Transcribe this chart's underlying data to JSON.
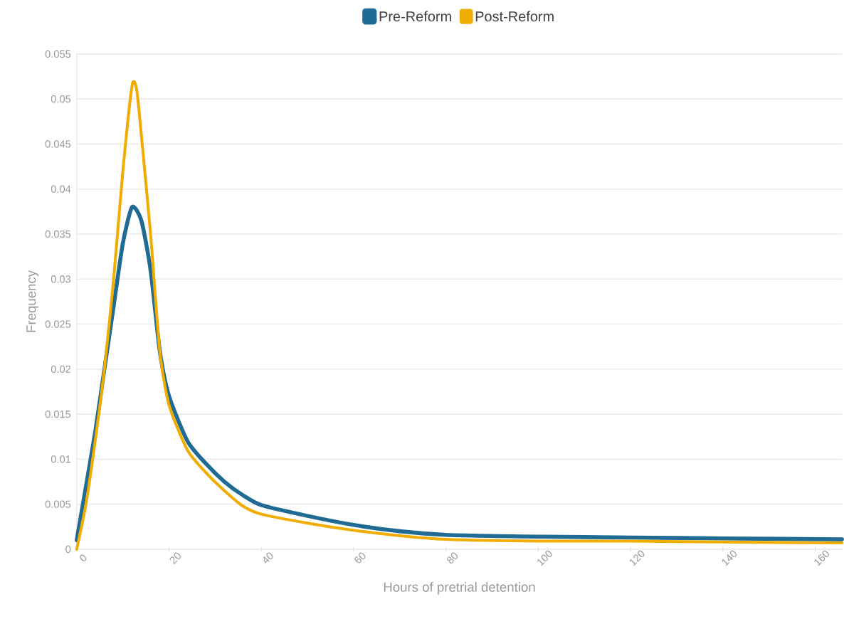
{
  "chart_data": {
    "type": "line",
    "xlabel": "Hours of pretrial detention",
    "ylabel": "Frequency",
    "xlim": [
      0,
      165.8
    ],
    "xticks": [
      0,
      20,
      40,
      60,
      80,
      100,
      120,
      140,
      160
    ],
    "ylim": [
      0,
      0.055
    ],
    "yticks": [
      0,
      0.005,
      0.01,
      0.015,
      0.02,
      0.025,
      0.03,
      0.035,
      0.04,
      0.045,
      0.05,
      0.055
    ],
    "grid": "y",
    "legend": "top",
    "marker": "none",
    "line_style": "solid",
    "series": [
      {
        "name": "Pre-Reform",
        "color": "#1f6b94",
        "x": [
          0,
          2,
          4,
          6,
          8,
          10,
          12,
          14,
          16,
          18,
          20,
          24,
          28,
          32,
          36,
          40,
          50,
          60,
          70,
          80,
          100,
          120,
          140,
          165.8
        ],
        "values": [
          0.001,
          0.007,
          0.013,
          0.02,
          0.027,
          0.034,
          0.038,
          0.0365,
          0.031,
          0.022,
          0.017,
          0.012,
          0.0095,
          0.0075,
          0.006,
          0.0049,
          0.0037,
          0.0027,
          0.002,
          0.0016,
          0.0014,
          0.0013,
          0.0012,
          0.0011
        ]
      },
      {
        "name": "Post-Reform",
        "color": "#f0ad00",
        "x": [
          0,
          2,
          4,
          6,
          8,
          10,
          12,
          13,
          14,
          16,
          18,
          20,
          24,
          28,
          32,
          36,
          40,
          50,
          60,
          70,
          80,
          100,
          120,
          140,
          165.8
        ],
        "values": [
          0,
          0.005,
          0.012,
          0.02,
          0.03,
          0.042,
          0.0515,
          0.051,
          0.046,
          0.035,
          0.022,
          0.016,
          0.011,
          0.0085,
          0.0065,
          0.0048,
          0.0039,
          0.0029,
          0.0021,
          0.0015,
          0.0011,
          0.0009,
          0.0009,
          0.0008,
          0.0007
        ]
      }
    ]
  }
}
